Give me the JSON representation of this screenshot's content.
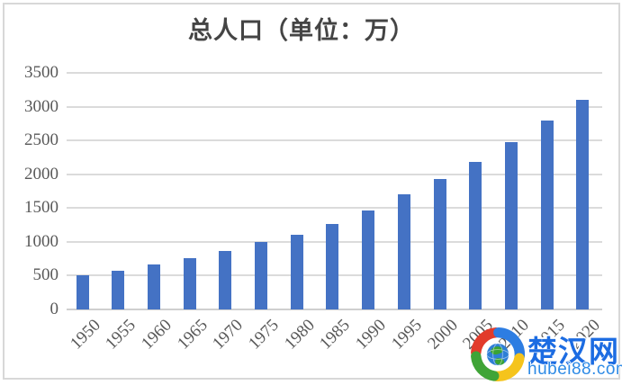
{
  "chart_data": {
    "type": "bar",
    "title": "总人口（单位：万）",
    "categories": [
      "1950",
      "1955",
      "1960",
      "1965",
      "1970",
      "1975",
      "1980",
      "1985",
      "1990",
      "1995",
      "2000",
      "2005",
      "2010",
      "2015",
      "2020"
    ],
    "values": [
      500,
      570,
      660,
      760,
      870,
      1000,
      1100,
      1270,
      1460,
      1700,
      1930,
      2180,
      2480,
      2790,
      3100
    ],
    "xlabel": "",
    "ylabel": "",
    "ylim": [
      0,
      3500
    ],
    "yticks": [
      0,
      500,
      1000,
      1500,
      2000,
      2500,
      3000,
      3500
    ],
    "grid": true,
    "legend": false,
    "bar_color": "#4472C4",
    "gridline_color": "#DBDBDB",
    "axis_line_color": "#CFCFCF",
    "axis_text_color": "#595959",
    "title_color": "#444444"
  },
  "watermark": {
    "site_name": "楚汉网",
    "site_url": "hubei88.com",
    "logo_icon": "swirl-globe-logo",
    "name_color": "#1c6ce2",
    "url_color": "#2e8be6",
    "logo_colors": {
      "red": "#e23b2b",
      "blue": "#2d7de2",
      "green": "#3fa437",
      "yellow": "#f5c41c",
      "globe_blue": "#2e7fd6",
      "globe_green": "#3aa334"
    }
  }
}
